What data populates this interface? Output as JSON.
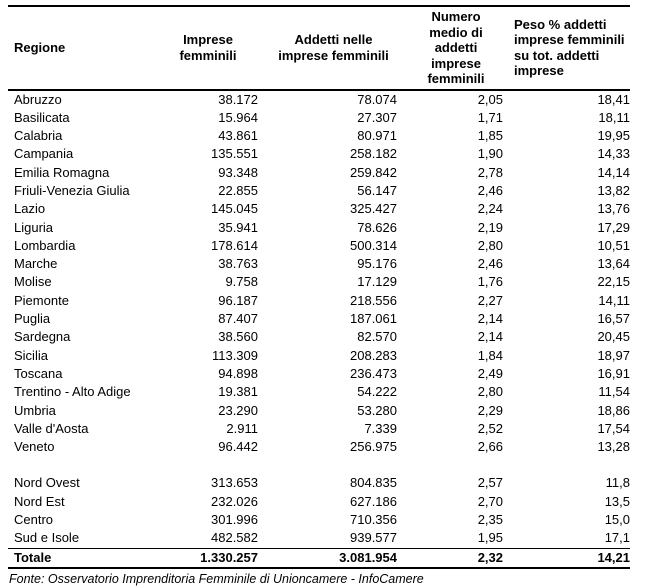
{
  "table": {
    "columns": [
      "Regione",
      "Imprese femminili",
      "Addetti nelle imprese femminili",
      "Numero medio di addetti imprese femminili",
      "Peso % addetti imprese femminili su tot. addetti imprese"
    ],
    "region_rows": [
      [
        "Abruzzo",
        "38.172",
        "78.074",
        "2,05",
        "18,41"
      ],
      [
        "Basilicata",
        "15.964",
        "27.307",
        "1,71",
        "18,11"
      ],
      [
        "Calabria",
        "43.861",
        "80.971",
        "1,85",
        "19,95"
      ],
      [
        "Campania",
        "135.551",
        "258.182",
        "1,90",
        "14,33"
      ],
      [
        "Emilia Romagna",
        "93.348",
        "259.842",
        "2,78",
        "14,14"
      ],
      [
        "Friuli-Venezia Giulia",
        "22.855",
        "56.147",
        "2,46",
        "13,82"
      ],
      [
        "Lazio",
        "145.045",
        "325.427",
        "2,24",
        "13,76"
      ],
      [
        "Liguria",
        "35.941",
        "78.626",
        "2,19",
        "17,29"
      ],
      [
        "Lombardia",
        "178.614",
        "500.314",
        "2,80",
        "10,51"
      ],
      [
        "Marche",
        "38.763",
        "95.176",
        "2,46",
        "13,64"
      ],
      [
        "Molise",
        "9.758",
        "17.129",
        "1,76",
        "22,15"
      ],
      [
        "Piemonte",
        "96.187",
        "218.556",
        "2,27",
        "14,11"
      ],
      [
        "Puglia",
        "87.407",
        "187.061",
        "2,14",
        "16,57"
      ],
      [
        "Sardegna",
        "38.560",
        "82.570",
        "2,14",
        "20,45"
      ],
      [
        "Sicilia",
        "113.309",
        "208.283",
        "1,84",
        "18,97"
      ],
      [
        "Toscana",
        "94.898",
        "236.473",
        "2,49",
        "16,91"
      ],
      [
        "Trentino - Alto Adige",
        "19.381",
        "54.222",
        "2,80",
        "11,54"
      ],
      [
        "Umbria",
        "23.290",
        "53.280",
        "2,29",
        "18,86"
      ],
      [
        "Valle d'Aosta",
        "2.911",
        "7.339",
        "2,52",
        "17,54"
      ],
      [
        "Veneto",
        "96.442",
        "256.975",
        "2,66",
        "13,28"
      ]
    ],
    "summary_rows": [
      [
        "Nord Ovest",
        "313.653",
        "804.835",
        "2,57",
        "11,8"
      ],
      [
        "Nord Est",
        "232.026",
        "627.186",
        "2,70",
        "13,5"
      ],
      [
        "Centro",
        "301.996",
        "710.356",
        "2,35",
        "15,0"
      ],
      [
        "Sud e Isole",
        "482.582",
        "939.577",
        "1,95",
        "17,1"
      ]
    ],
    "total_row": [
      "Totale",
      "1.330.257",
      "3.081.954",
      "2,32",
      "14,21"
    ]
  },
  "footer": {
    "source_note": "Fonte: Osservatorio Imprenditoria Femminile di Unioncamere - InfoCamere"
  }
}
